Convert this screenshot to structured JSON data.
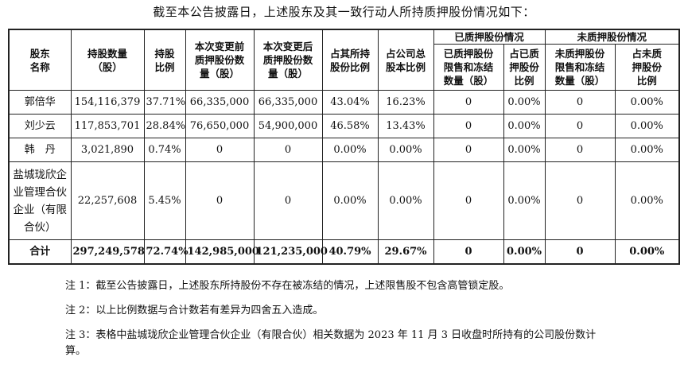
{
  "intro": "截至本公告披露日，上述股东及其一致行动人所持质押股份情况如下：",
  "table": {
    "headers": {
      "shareholder": "股东\n名称",
      "holding": "持股数量\n（股）",
      "ratio": "持股\n比例",
      "before": "本次变更前\n质押股份数\n量（股）",
      "after": "本次变更后\n质押股份数\n量（股）",
      "own_ratio": "占其所持\n股份比例",
      "total_ratio": "占公司总\n股本比例",
      "pledged_group": "已质押股份情况",
      "unpledged_group": "未质押股份情况",
      "pledged_restricted": "已质押股份\n限售和冻结\n数量（股）",
      "pledged_pct": "占已质\n押股份\n比例",
      "unpledged_restricted": "未质押股份\n限售和冻结\n数量（股）",
      "unpledged_pct": "占未质\n押股份\n比例"
    },
    "rows": [
      {
        "name": "郭倍华",
        "holding": "154,116,379",
        "ratio": "37.71%",
        "before": "66,335,000",
        "after": "66,335,000",
        "own_ratio": "43.04%",
        "total_ratio": "16.23%",
        "p_restricted": "0",
        "p_pct": "0.00%",
        "u_restricted": "0",
        "u_pct": "0.00%"
      },
      {
        "name": "刘少云",
        "holding": "117,853,701",
        "ratio": "28.84%",
        "before": "76,650,000",
        "after": "54,900,000",
        "own_ratio": "46.58%",
        "total_ratio": "13.43%",
        "p_restricted": "0",
        "p_pct": "0.00%",
        "u_restricted": "0",
        "u_pct": "0.00%"
      },
      {
        "name": "韩　丹",
        "holding": "3,021,890",
        "ratio": "0.74%",
        "before": "0",
        "after": "0",
        "own_ratio": "0.00%",
        "total_ratio": "0.00%",
        "p_restricted": "0",
        "p_pct": "0.00%",
        "u_restricted": "0",
        "u_pct": "0.00%"
      },
      {
        "name": "盐城珑欣企\n业管理合伙\n企业（有限\n合伙）",
        "holding": "22,257,608",
        "ratio": "5.45%",
        "before": "0",
        "after": "0",
        "own_ratio": "0.00%",
        "total_ratio": "0.00%",
        "p_restricted": "0",
        "p_pct": "0.00%",
        "u_restricted": "0",
        "u_pct": "0.00%"
      }
    ],
    "total": {
      "name": "合计",
      "holding": "297,249,578",
      "ratio": "72.74%",
      "before": "142,985,000",
      "after": "121,235,000",
      "own_ratio": "40.79%",
      "total_ratio": "29.67%",
      "p_restricted": "0",
      "p_pct": "0.00%",
      "u_restricted": "0",
      "u_pct": "0.00%"
    }
  },
  "notes": [
    "注 1：截至公告披露日，上述股东所持股份不存在被冻结的情况，上述限售股不包含高管锁定股。",
    "注 2：以上比例数据与合计数若有差异为四舍五入造成。",
    "注 3：表格中盐城珑欣企业管理合伙企业（有限合伙）相关数据为 2023 年 11 月 3 日收盘时所持有的公司股份数计算。"
  ]
}
